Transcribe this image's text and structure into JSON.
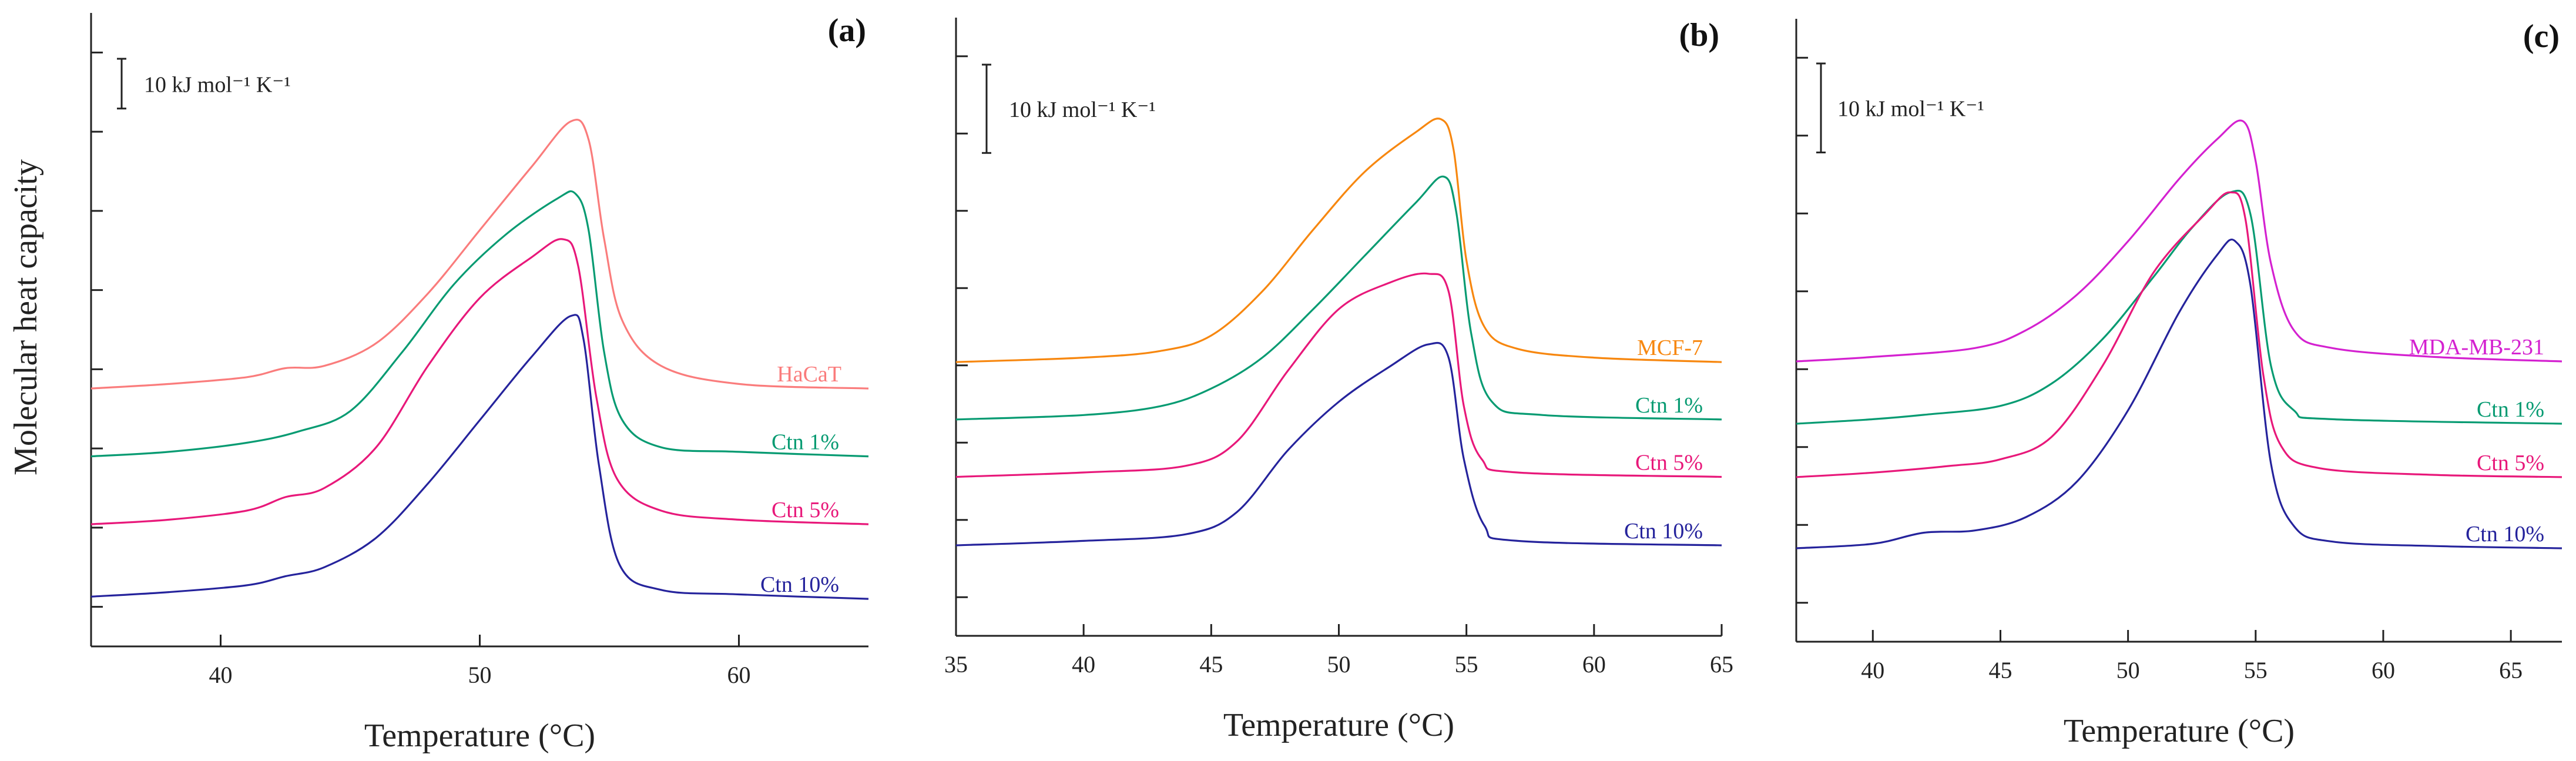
{
  "figure": {
    "ylabel": "Molecular heat capacity",
    "xlabel": "Temperature (°C)",
    "scale_bar": "10 kJ mol⁻¹ K⁻¹"
  },
  "chart_data": [
    {
      "type": "line",
      "panel": "(a)",
      "xlabel": "Temperature (°C)",
      "ylabel": "Molecular heat capacity",
      "xlim": [
        35,
        65
      ],
      "xticks": [
        40,
        50,
        60
      ],
      "xtick_labels": [
        "40",
        "50",
        "60"
      ],
      "ylim": [
        0,
        140
      ],
      "ytick_count": 8,
      "scale_bar_label": "10 kJ mol⁻¹ K⁻¹",
      "scale_bar_value": 11,
      "series": [
        {
          "name": "HaCaT",
          "color": "#fa7c7c",
          "points": [
            [
              35,
              57
            ],
            [
              38,
              58
            ],
            [
              41,
              59.5
            ],
            [
              42.5,
              61.5
            ],
            [
              44,
              62
            ],
            [
              46,
              67
            ],
            [
              48,
              78
            ],
            [
              50,
              92
            ],
            [
              52,
              106
            ],
            [
              53.5,
              116
            ],
            [
              54.2,
              112
            ],
            [
              54.8,
              90
            ],
            [
              55.5,
              72
            ],
            [
              57,
              62
            ],
            [
              60,
              58
            ],
            [
              65,
              57
            ]
          ]
        },
        {
          "name": "Ctn 1%",
          "color": "#079b72",
          "points": [
            [
              35,
              42
            ],
            [
              38,
              43
            ],
            [
              41,
              45
            ],
            [
              43,
              47.5
            ],
            [
              45,
              52
            ],
            [
              47,
              65
            ],
            [
              49,
              80
            ],
            [
              51,
              91
            ],
            [
              53,
              99
            ],
            [
              53.7,
              100
            ],
            [
              54.2,
              92
            ],
            [
              54.8,
              65
            ],
            [
              55.5,
              50
            ],
            [
              57,
              44
            ],
            [
              60,
              43
            ],
            [
              65,
              42
            ]
          ]
        },
        {
          "name": "Ctn 5%",
          "color": "#e8187a",
          "points": [
            [
              35,
              27
            ],
            [
              38,
              28
            ],
            [
              41,
              30
            ],
            [
              42.5,
              33
            ],
            [
              44,
              35
            ],
            [
              46,
              44
            ],
            [
              48,
              62
            ],
            [
              50,
              77
            ],
            [
              52,
              86
            ],
            [
              53.2,
              90
            ],
            [
              53.8,
              84
            ],
            [
              54.5,
              55
            ],
            [
              55.3,
              37
            ],
            [
              57,
              30
            ],
            [
              60,
              28
            ],
            [
              65,
              27
            ]
          ]
        },
        {
          "name": "Ctn 10%",
          "color": "#25239c",
          "points": [
            [
              35,
              11
            ],
            [
              38,
              12
            ],
            [
              41,
              13.5
            ],
            [
              42.5,
              15.5
            ],
            [
              44,
              17.5
            ],
            [
              46,
              24
            ],
            [
              48,
              36
            ],
            [
              50,
              50
            ],
            [
              52,
              64
            ],
            [
              53.5,
              73
            ],
            [
              54,
              68
            ],
            [
              54.6,
              40
            ],
            [
              55.4,
              18
            ],
            [
              57,
              12.5
            ],
            [
              60,
              11.5
            ],
            [
              65,
              10.5
            ]
          ]
        }
      ]
    },
    {
      "type": "line",
      "panel": "(b)",
      "xlabel": "Temperature (°C)",
      "ylabel": "",
      "xlim": [
        35,
        65
      ],
      "xticks": [
        35,
        40,
        45,
        50,
        55,
        60,
        65
      ],
      "xtick_labels": [
        "35",
        "40",
        "45",
        "50",
        "55",
        "60",
        "65"
      ],
      "ylim": [
        0,
        140
      ],
      "ytick_count": 8,
      "scale_bar_label": "10 kJ mol⁻¹ K⁻¹",
      "scale_bar_value": 20,
      "series": [
        {
          "name": "MCF-7",
          "color": "#f7870f",
          "points": [
            [
              35,
              62
            ],
            [
              40,
              63
            ],
            [
              43,
              64.5
            ],
            [
              45,
              68
            ],
            [
              47,
              78
            ],
            [
              49,
              92
            ],
            [
              51,
              105
            ],
            [
              53,
              114
            ],
            [
              54,
              117
            ],
            [
              54.5,
              110
            ],
            [
              55,
              85
            ],
            [
              55.7,
              70
            ],
            [
              57,
              65
            ],
            [
              60,
              63
            ],
            [
              65,
              62
            ]
          ]
        },
        {
          "name": "Ctn 1%",
          "color": "#079b72",
          "points": [
            [
              35,
              49
            ],
            [
              40,
              50
            ],
            [
              43,
              52
            ],
            [
              45,
              56
            ],
            [
              47,
              63
            ],
            [
              49,
              74
            ],
            [
              51,
              86
            ],
            [
              53,
              98
            ],
            [
              54.1,
              104
            ],
            [
              54.6,
              96
            ],
            [
              55.2,
              68
            ],
            [
              56,
              53
            ],
            [
              58,
              50
            ],
            [
              65,
              49
            ]
          ]
        },
        {
          "name": "Ctn 5%",
          "color": "#e8187a",
          "points": [
            [
              35,
              36
            ],
            [
              40,
              37
            ],
            [
              44,
              38.5
            ],
            [
              46,
              44
            ],
            [
              48,
              60
            ],
            [
              50,
              74
            ],
            [
              52,
              80
            ],
            [
              53.5,
              82
            ],
            [
              54.3,
              78
            ],
            [
              54.9,
              52
            ],
            [
              55.6,
              40
            ],
            [
              57,
              37
            ],
            [
              65,
              36
            ]
          ]
        },
        {
          "name": "Ctn 10%",
          "color": "#25239c",
          "points": [
            [
              35,
              20.5
            ],
            [
              40,
              21.5
            ],
            [
              44,
              23
            ],
            [
              46,
              28
            ],
            [
              48,
              42
            ],
            [
              50,
              53
            ],
            [
              52,
              61
            ],
            [
              53.5,
              66
            ],
            [
              54.3,
              63
            ],
            [
              54.9,
              40
            ],
            [
              55.7,
              25
            ],
            [
              57,
              21.5
            ],
            [
              65,
              20.5
            ]
          ]
        }
      ]
    },
    {
      "type": "line",
      "panel": "(c)",
      "xlabel": "Temperature (°C)",
      "ylabel": "",
      "xlim": [
        37,
        67
      ],
      "xticks": [
        40,
        45,
        50,
        55,
        60,
        65
      ],
      "xtick_labels": [
        "40",
        "45",
        "50",
        "55",
        "60",
        "65"
      ],
      "ylim": [
        0,
        140
      ],
      "ytick_count": 8,
      "scale_bar_label": "10 kJ mol⁻¹ K⁻¹",
      "scale_bar_value": 20,
      "series": [
        {
          "name": "MDA-MB-231",
          "color": "#d421d0",
          "points": [
            [
              37,
              63
            ],
            [
              40,
              64
            ],
            [
              44,
              66
            ],
            [
              46,
              70
            ],
            [
              48,
              78
            ],
            [
              50,
              90
            ],
            [
              52,
              104
            ],
            [
              53.5,
              113
            ],
            [
              54.5,
              117
            ],
            [
              55,
              108
            ],
            [
              55.6,
              85
            ],
            [
              56.5,
              70
            ],
            [
              58,
              66
            ],
            [
              62,
              64
            ],
            [
              67,
              63
            ]
          ]
        },
        {
          "name": "Ctn 1%",
          "color": "#079b72",
          "points": [
            [
              37,
              49
            ],
            [
              40,
              50
            ],
            [
              42,
              51
            ],
            [
              45,
              53
            ],
            [
              47,
              58
            ],
            [
              49,
              68
            ],
            [
              51,
              82
            ],
            [
              52.5,
              93
            ],
            [
              54,
              101
            ],
            [
              54.8,
              96
            ],
            [
              55.6,
              62
            ],
            [
              56.5,
              52
            ],
            [
              58,
              50
            ],
            [
              67,
              49
            ]
          ]
        },
        {
          "name": "Ctn 5%",
          "color": "#e8187a",
          "points": [
            [
              37,
              37
            ],
            [
              40,
              38
            ],
            [
              43,
              39.5
            ],
            [
              45,
              41
            ],
            [
              47,
              46
            ],
            [
              49,
              62
            ],
            [
              51,
              83
            ],
            [
              53,
              96
            ],
            [
              54,
              101
            ],
            [
              54.6,
              95
            ],
            [
              55.3,
              60
            ],
            [
              56,
              44
            ],
            [
              57.5,
              39
            ],
            [
              62,
              37.5
            ],
            [
              67,
              37
            ]
          ]
        },
        {
          "name": "Ctn 10%",
          "color": "#25239c",
          "points": [
            [
              37,
              21
            ],
            [
              40,
              22
            ],
            [
              42,
              24.5
            ],
            [
              44,
              25
            ],
            [
              46,
              28
            ],
            [
              48,
              36
            ],
            [
              50,
              52
            ],
            [
              52,
              74
            ],
            [
              53.5,
              87
            ],
            [
              54.2,
              90
            ],
            [
              54.8,
              80
            ],
            [
              55.6,
              40
            ],
            [
              56.5,
              26
            ],
            [
              58,
              22.5
            ],
            [
              62,
              21.5
            ],
            [
              67,
              21
            ]
          ]
        }
      ]
    }
  ]
}
